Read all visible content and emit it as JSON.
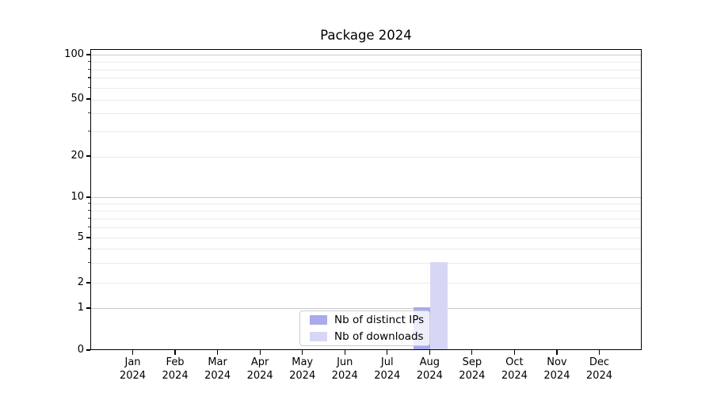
{
  "chart_data": {
    "type": "bar",
    "title": "Package 2024",
    "categories": [
      "Jan 2024",
      "Feb 2024",
      "Mar 2024",
      "Apr 2024",
      "May 2024",
      "Jun 2024",
      "Jul 2024",
      "Aug 2024",
      "Sep 2024",
      "Oct 2024",
      "Nov 2024",
      "Dec 2024"
    ],
    "x_labels": [
      {
        "month": "Jan",
        "year": "2024"
      },
      {
        "month": "Feb",
        "year": "2024"
      },
      {
        "month": "Mar",
        "year": "2024"
      },
      {
        "month": "Apr",
        "year": "2024"
      },
      {
        "month": "May",
        "year": "2024"
      },
      {
        "month": "Jun",
        "year": "2024"
      },
      {
        "month": "Jul",
        "year": "2024"
      },
      {
        "month": "Aug",
        "year": "2024"
      },
      {
        "month": "Sep",
        "year": "2024"
      },
      {
        "month": "Oct",
        "year": "2024"
      },
      {
        "month": "Nov",
        "year": "2024"
      },
      {
        "month": "Dec",
        "year": "2024"
      }
    ],
    "series": [
      {
        "name": "Nb of distinct IPs",
        "color": "#a9a9ec",
        "values": [
          0,
          0,
          0,
          0,
          0,
          0,
          0,
          1,
          0,
          0,
          0,
          0
        ]
      },
      {
        "name": "Nb of downloads",
        "color": "#d7d7f5",
        "values": [
          0,
          0,
          0,
          0,
          0,
          0,
          0,
          3,
          0,
          0,
          0,
          0
        ]
      }
    ],
    "xlabel": "",
    "ylabel": "",
    "yticks": [
      0,
      1,
      2,
      5,
      10,
      20,
      50,
      100
    ],
    "ylim": [
      0,
      110
    ],
    "scale": "log-with-zero",
    "grid": "horizontal-log-minor",
    "legend_position": "bottom-center",
    "colors": {
      "major_grid": "#c9c9c9",
      "minor_grid": "#ebebeb",
      "axis": "#000000",
      "legend_border": "#cccccc",
      "background": "#ffffff"
    }
  }
}
